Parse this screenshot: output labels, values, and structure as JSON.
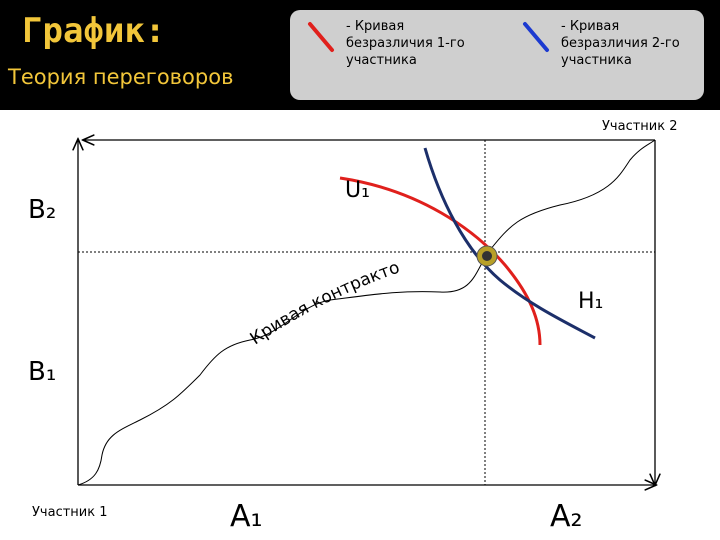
{
  "header": {
    "title": "График:",
    "subtitle": "Теория переговоров"
  },
  "legend": [
    {
      "lines": [
        "- Кривая",
        "безразличия 1-го",
        "участника"
      ],
      "color": "#e0201c"
    },
    {
      "lines": [
        "- Кривая",
        "безразличия 2-го",
        "участника"
      ],
      "color": "#1c3ad0"
    }
  ],
  "diagram": {
    "participant_2": "Участник 2",
    "participant_1": "Участник 1",
    "b2": "B₂",
    "b1": "B₁",
    "a1": "A₁",
    "a2": "A₂",
    "u1": "U₁",
    "h1": "H₁",
    "contract_curve": "Кривая контрактов"
  }
}
